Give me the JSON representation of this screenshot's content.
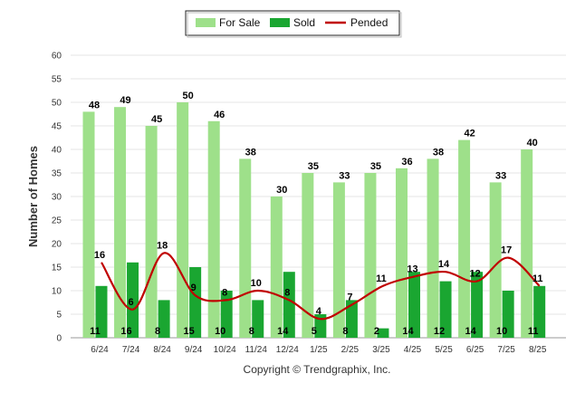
{
  "chart_data": {
    "type": "bar",
    "categories": [
      "6/24",
      "7/24",
      "8/24",
      "9/24",
      "10/24",
      "11/24",
      "12/24",
      "1/25",
      "2/25",
      "3/25",
      "4/25",
      "5/25",
      "6/25",
      "7/25",
      "8/25"
    ],
    "series": [
      {
        "name": "For Sale",
        "type": "bar",
        "color": "#9ee08a",
        "values": [
          48,
          49,
          45,
          50,
          46,
          38,
          30,
          35,
          33,
          35,
          36,
          38,
          42,
          33,
          40
        ]
      },
      {
        "name": "Sold",
        "type": "bar",
        "color": "#1aa631",
        "values": [
          11,
          16,
          8,
          15,
          10,
          8,
          14,
          5,
          8,
          2,
          14,
          12,
          14,
          10,
          11
        ]
      },
      {
        "name": "Pended",
        "type": "line",
        "color": "#c00000",
        "values": [
          16,
          6,
          18,
          9,
          8,
          10,
          8,
          4,
          7,
          11,
          13,
          14,
          12,
          17,
          11
        ]
      }
    ],
    "ylabel": "Number of Homes",
    "xlabel": "",
    "ylim": [
      0,
      60
    ],
    "yticks": [
      0,
      5,
      10,
      15,
      20,
      25,
      30,
      35,
      40,
      45,
      50,
      55,
      60
    ],
    "grid": true,
    "legend_position": "top-center",
    "copyright": "Copyright © Trendgraphix, Inc."
  }
}
